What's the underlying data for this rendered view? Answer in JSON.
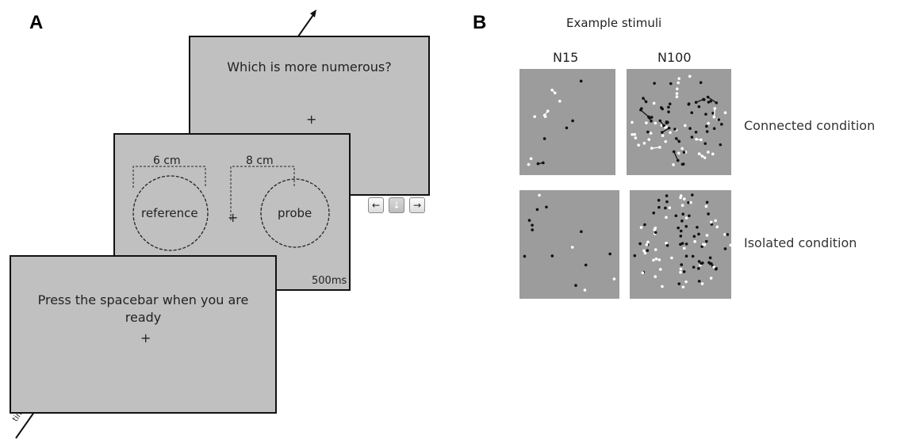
{
  "panel_a": {
    "letter": "A",
    "screen_back": {
      "question": "Which is more numerous?",
      "fixation": "+"
    },
    "screen_middle": {
      "ref_distance": "6 cm",
      "probe_distance": "8 cm",
      "reference_label": "reference",
      "probe_label": "probe",
      "fixation": "+",
      "duration": "500ms"
    },
    "screen_front": {
      "instruction": "Press the spacebar when you are ready",
      "fixation": "+"
    },
    "keys": {
      "left": "←",
      "down": "↓",
      "right": "→"
    },
    "time_label": "time"
  },
  "panel_b": {
    "letter": "B",
    "title": "Example stimuli",
    "col_n15": "N15",
    "col_n100": "N100",
    "connected_label": "Connected condition",
    "isolated_label": "Isolated condition"
  }
}
